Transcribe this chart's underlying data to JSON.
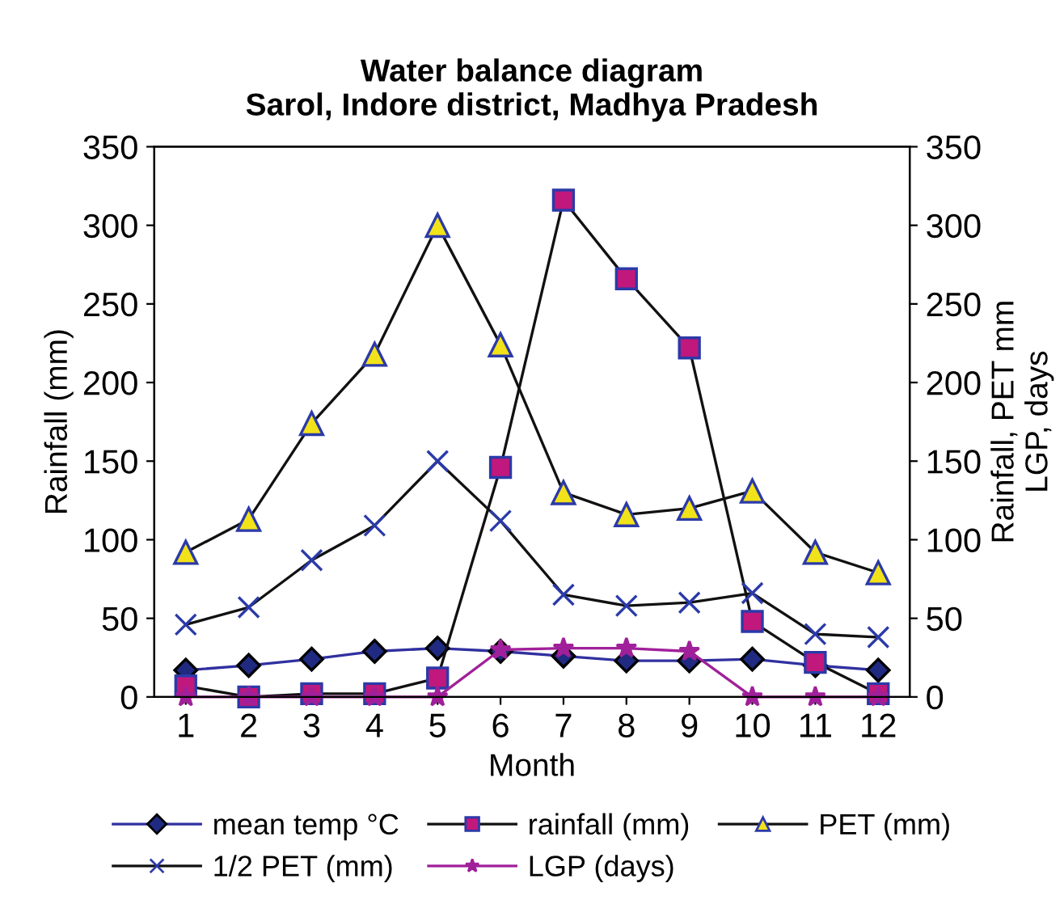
{
  "chart_data": {
    "type": "line",
    "title": "Water balance diagram\nSarol, Indore district, Madhya Pradesh",
    "xlabel": "Month",
    "ylabel": "Rainfall (mm)",
    "y2label": "Rainfall, PET mm\nLGP, days",
    "categories": [
      "1",
      "2",
      "3",
      "4",
      "5",
      "6",
      "7",
      "8",
      "9",
      "10",
      "11",
      "12"
    ],
    "series": [
      {
        "name": "mean temp °C",
        "color": "#1f2a80",
        "marker": "diamond",
        "values": [
          17,
          20,
          24,
          29,
          31,
          29,
          26,
          23,
          23,
          24,
          20,
          17
        ]
      },
      {
        "name": "rainfall (mm)",
        "color": "#c0187c",
        "marker": "square",
        "values": [
          7,
          0,
          2,
          2,
          12,
          146,
          316,
          266,
          222,
          48,
          22,
          2
        ]
      },
      {
        "name": "PET (mm)",
        "color": "#f2e21a",
        "marker": "triangle",
        "values": [
          92,
          113,
          174,
          218,
          300,
          224,
          130,
          116,
          120,
          131,
          92,
          79
        ]
      },
      {
        "name": "1/2 PET (mm)",
        "color": "#2b3aa8",
        "marker": "cross",
        "values": [
          46,
          57,
          87,
          109,
          150,
          112,
          65,
          58,
          60,
          66,
          40,
          38
        ]
      },
      {
        "name": "LGP (days)",
        "color": "#a0209a",
        "marker": "star",
        "values": [
          0,
          0,
          0,
          0,
          0,
          30,
          31,
          31,
          29,
          0,
          0,
          0
        ]
      }
    ],
    "ylim": [
      0,
      350
    ],
    "yticks": [
      0,
      50,
      100,
      150,
      200,
      250,
      300,
      350
    ],
    "y2lim": [
      0,
      350
    ],
    "y2ticks": [
      0,
      50,
      100,
      150,
      200,
      250,
      300,
      350
    ],
    "grid": false,
    "legend": "bottom"
  }
}
